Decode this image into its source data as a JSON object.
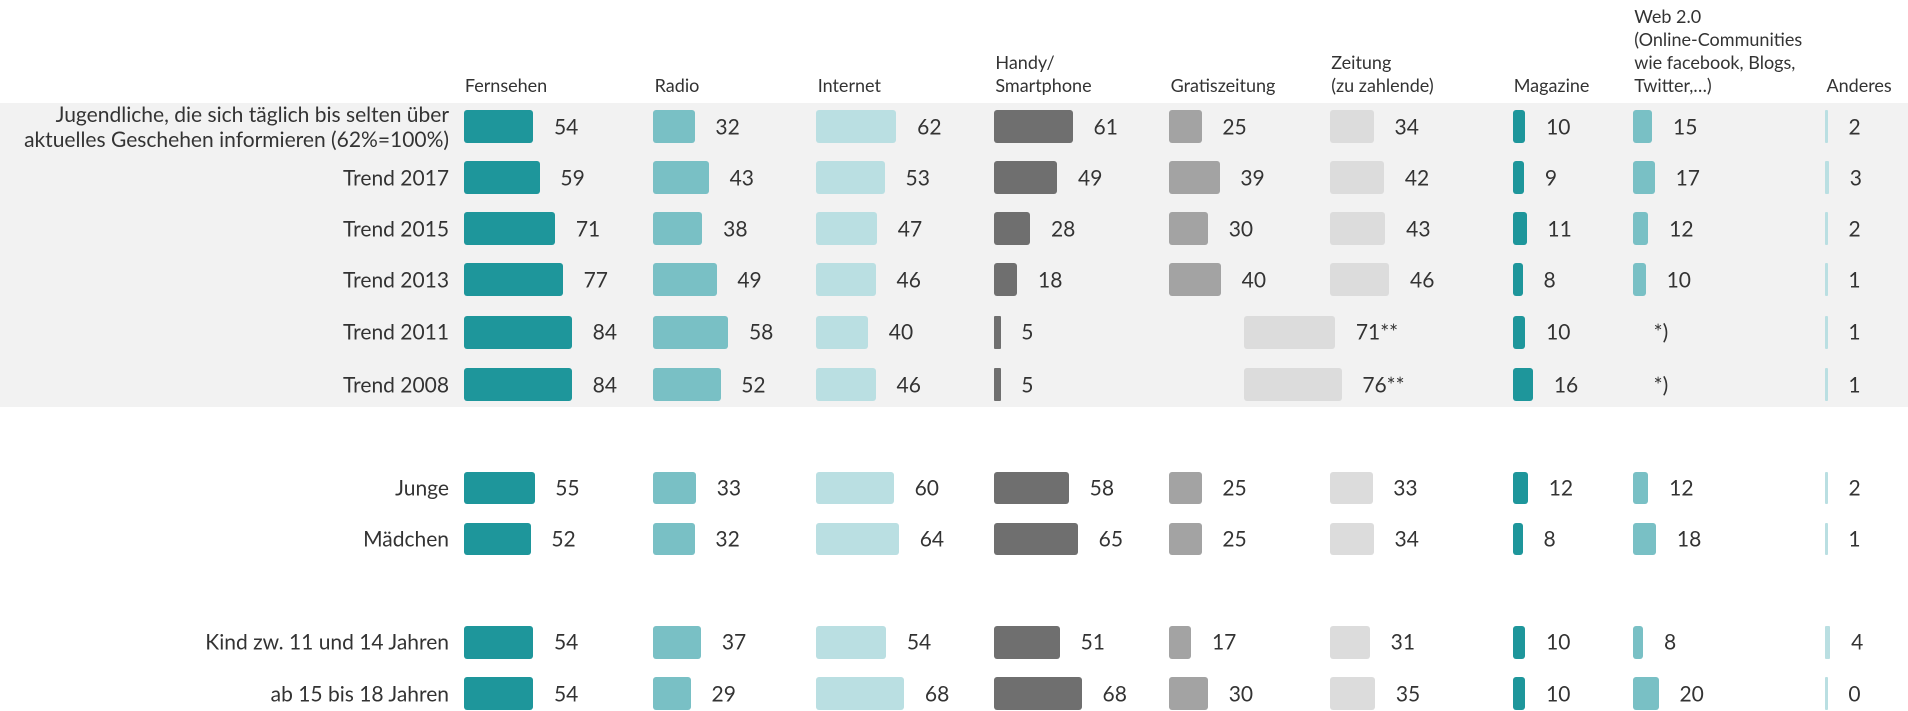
{
  "chart_data": {
    "type": "table-bar",
    "categories": [
      "Jugendliche, die sich täglich bis selten über\naktuelles Geschehen informieren (62%=100%)",
      "Trend 2017",
      "Trend 2015",
      "Trend 2013",
      "Trend 2011",
      "Trend 2008",
      "Junge",
      "Mädchen",
      "Kind zw. 11 und 14 Jahren",
      "ab 15 bis 18 Jahren"
    ],
    "series": [
      {
        "name": "Fernsehen",
        "color": "#1e969b",
        "values": [
          54,
          59,
          71,
          77,
          84,
          84,
          55,
          52,
          54,
          54
        ]
      },
      {
        "name": "Radio",
        "color": "#79c0c5",
        "values": [
          32,
          43,
          38,
          49,
          58,
          52,
          33,
          32,
          37,
          29
        ]
      },
      {
        "name": "Internet",
        "color": "#badfe2",
        "values": [
          62,
          53,
          47,
          46,
          40,
          46,
          60,
          64,
          54,
          68
        ]
      },
      {
        "name": "Handy/\nSmartphone",
        "color": "#6f6f6f",
        "values": [
          61,
          49,
          28,
          18,
          5,
          5,
          58,
          65,
          51,
          68
        ]
      },
      {
        "name": "Gratiszeitung",
        "color": "#a3a3a3",
        "values": [
          25,
          39,
          30,
          40,
          null,
          null,
          25,
          25,
          17,
          30
        ]
      },
      {
        "name": "Zeitung\n(zu zahlende)",
        "color": "#dcdcdc",
        "values": [
          34,
          42,
          43,
          46,
          71,
          76,
          33,
          34,
          31,
          35
        ],
        "value_labels": [
          "34",
          "42",
          "43",
          "46",
          "71**",
          "76**",
          "33",
          "34",
          "31",
          "35"
        ]
      },
      {
        "name": "Magazine",
        "color": "#1e969b",
        "values": [
          10,
          9,
          11,
          8,
          10,
          16,
          12,
          8,
          10,
          10
        ]
      },
      {
        "name": "Web 2.0\n(Online-Communities\nwie facebook, Blogs,\nTwitter,…)",
        "color": "#79c0c5",
        "values": [
          15,
          17,
          12,
          10,
          null,
          null,
          12,
          18,
          8,
          20
        ],
        "value_labels": [
          "15",
          "17",
          "12",
          "10",
          "*)",
          "*)",
          "12",
          "18",
          "8",
          "20"
        ]
      },
      {
        "name": "Anderes",
        "color": "#badfe2",
        "values": [
          2,
          3,
          2,
          1,
          1,
          1,
          2,
          1,
          4,
          0
        ]
      }
    ]
  }
}
